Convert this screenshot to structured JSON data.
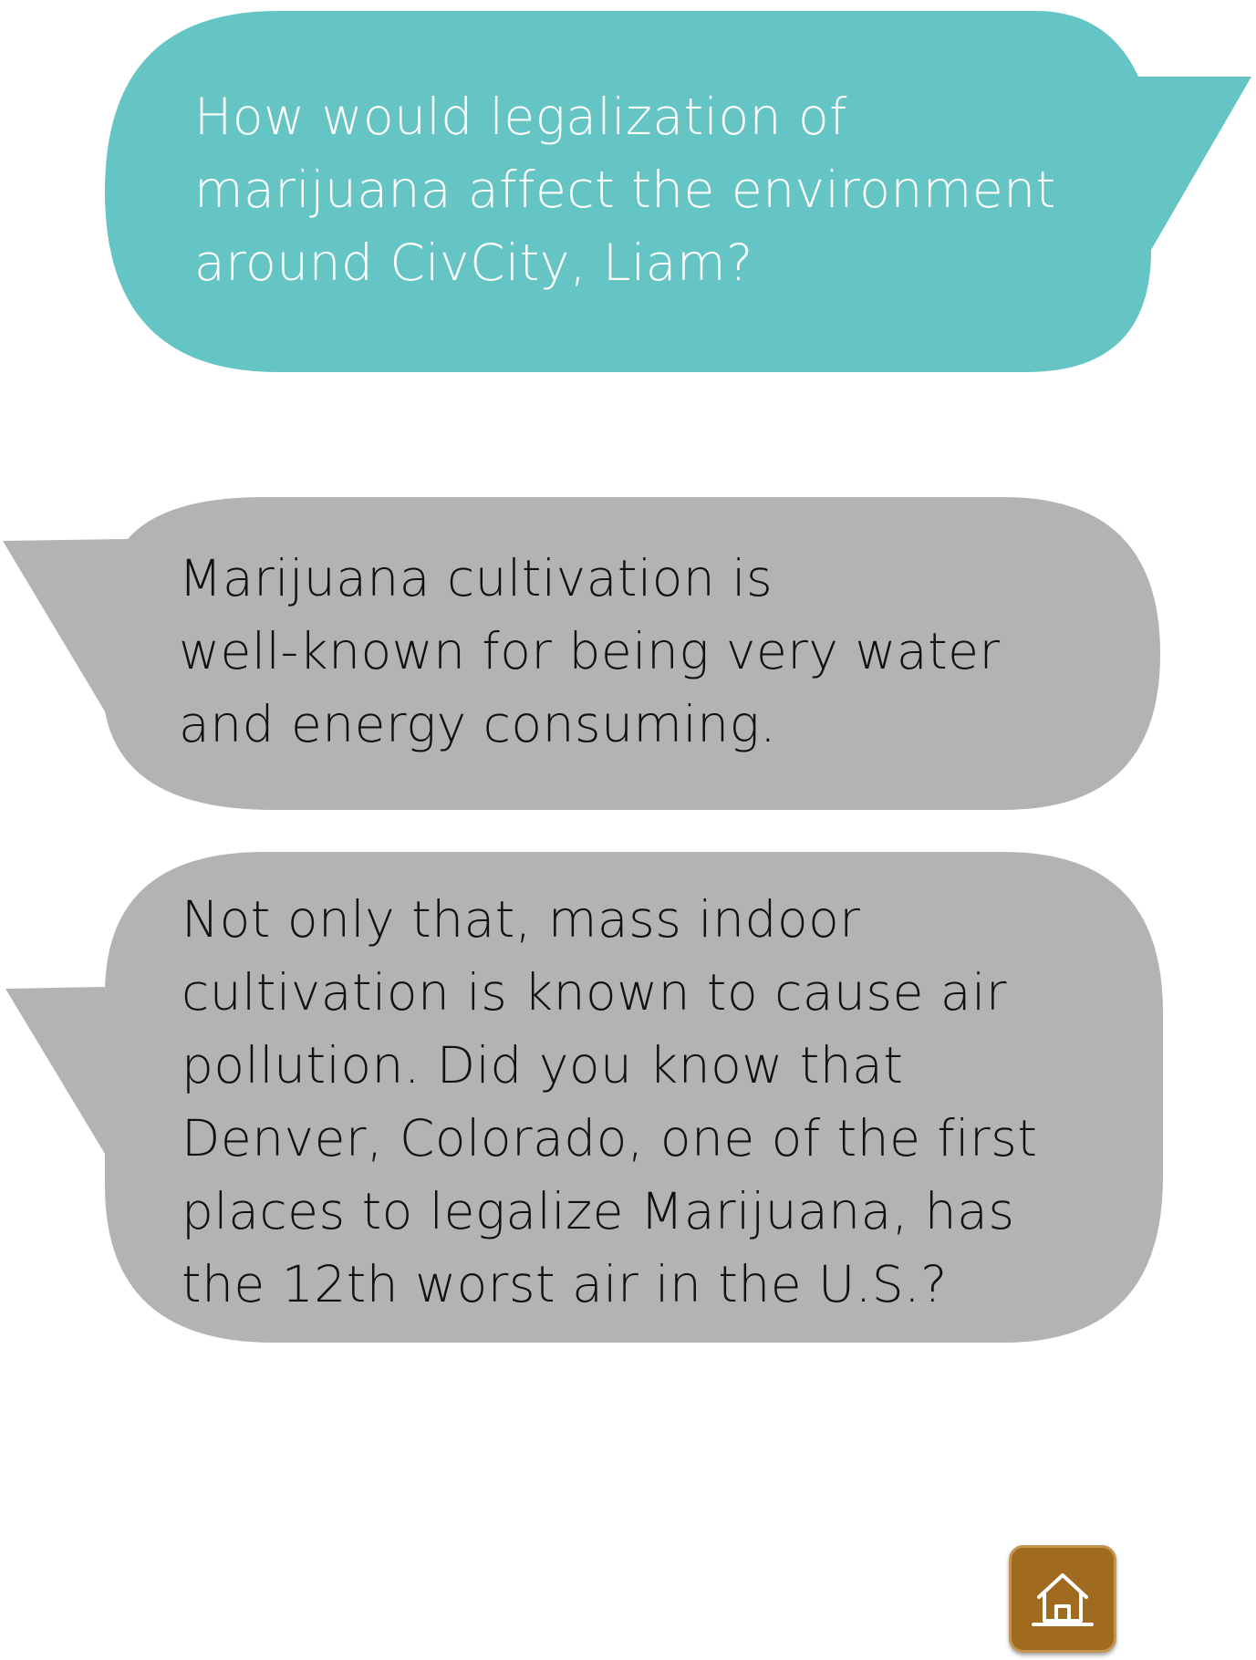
{
  "chat": {
    "question": {
      "lines": [
        "How would legalization of",
        "marijuana affect the environment",
        "around CivCity, Liam?"
      ]
    },
    "reply_1": {
      "lines": [
        "Marijuana cultivation is",
        "well-known for being very water",
        "and energy consuming."
      ]
    },
    "reply_2": {
      "lines": [
        "Not only that, mass indoor",
        "cultivation is known to cause air",
        "pollution. Did you know that",
        "Denver, Colorado, one of the first",
        "places to legalize Marijuana, has",
        "the 12th worst air in the U.S.?"
      ]
    }
  },
  "home_button": {
    "icon": "home-icon"
  },
  "colors": {
    "question_bubble": "#65c4c4",
    "reply_bubble": "#b3b3b3",
    "home_button": "#a06a1f"
  }
}
